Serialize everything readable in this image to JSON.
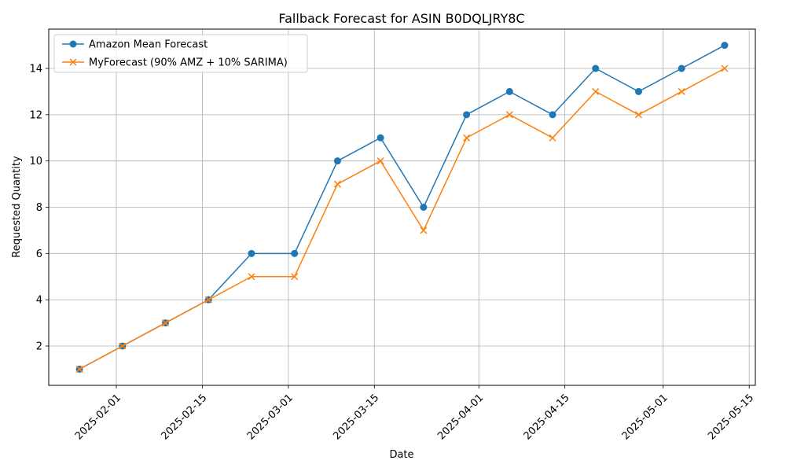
{
  "chart_data": {
    "type": "line",
    "title": "Fallback Forecast for ASIN B0DQLJRY8C",
    "xlabel": "Date",
    "ylabel": "Requested Quantity",
    "x_tick_labels": [
      "2025-02-01",
      "2025-02-15",
      "2025-03-01",
      "2025-03-15",
      "2025-04-01",
      "2025-04-15",
      "2025-05-01",
      "2025-05-15"
    ],
    "y_tick_labels": [
      "2",
      "4",
      "6",
      "8",
      "10",
      "12",
      "14"
    ],
    "xlim": [
      "2025-01-21",
      "2025-05-16"
    ],
    "ylim": [
      0.3,
      15.7
    ],
    "grid": true,
    "legend_position": "top-left",
    "x": [
      "2025-01-26",
      "2025-02-02",
      "2025-02-09",
      "2025-02-16",
      "2025-02-23",
      "2025-03-02",
      "2025-03-09",
      "2025-03-16",
      "2025-03-23",
      "2025-03-30",
      "2025-04-06",
      "2025-04-13",
      "2025-04-20",
      "2025-04-27",
      "2025-05-04",
      "2025-05-11"
    ],
    "series": [
      {
        "name": "Amazon Mean Forecast",
        "color": "#1f77b4",
        "marker": "circle",
        "values": [
          1,
          2,
          3,
          4,
          6,
          6,
          10,
          11,
          8,
          12,
          13,
          12,
          14,
          13,
          14,
          15
        ]
      },
      {
        "name": "MyForecast (90% AMZ + 10% SARIMA)",
        "color": "#ff7f0e",
        "marker": "x",
        "values": [
          1,
          2,
          3,
          4,
          5,
          5,
          9,
          10,
          7,
          11,
          12,
          11,
          13,
          12,
          13,
          14
        ]
      }
    ]
  }
}
